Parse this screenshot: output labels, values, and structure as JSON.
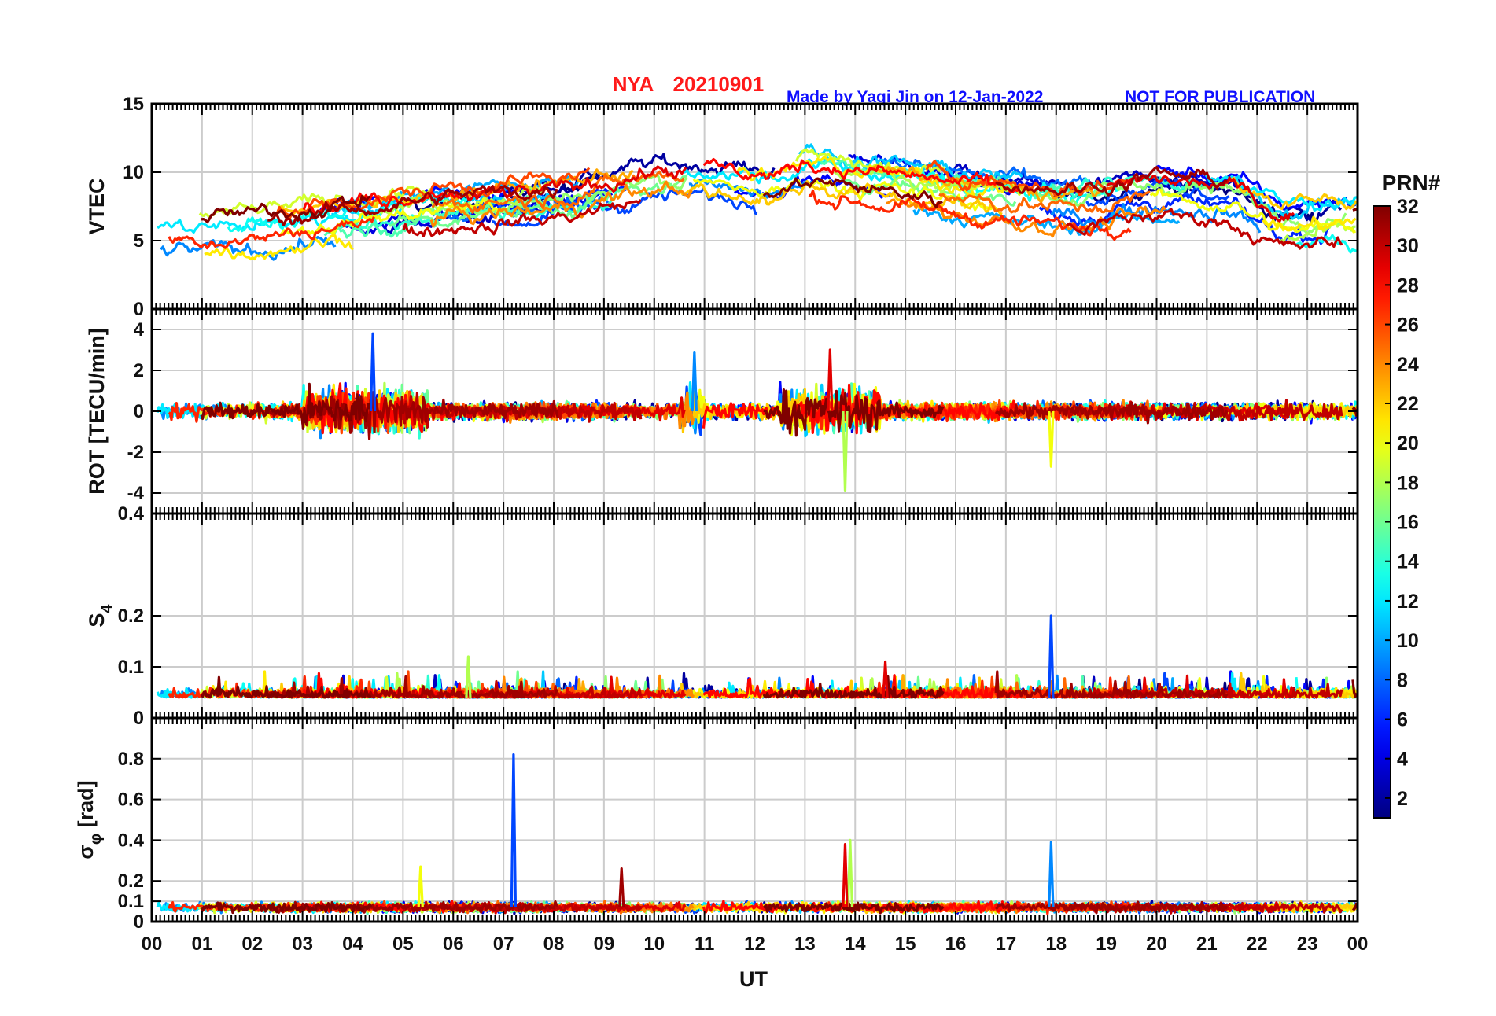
{
  "header": {
    "station": "NYA",
    "date": "20210901",
    "credit": "Made by Yaqi Jin on 12-Jan-2022",
    "notice": "NOT FOR PUBLICATION"
  },
  "colors": {
    "frame": "#000000",
    "grid": "#cccccc",
    "title_red": "#ff1a1a",
    "title_blue": "#1010ff"
  },
  "chart_data": {
    "type": "line",
    "x_axis": {
      "label": "UT",
      "range": [
        0,
        24
      ],
      "tick_labels": [
        "00",
        "01",
        "02",
        "03",
        "04",
        "05",
        "06",
        "07",
        "08",
        "09",
        "10",
        "11",
        "12",
        "13",
        "14",
        "15",
        "16",
        "17",
        "18",
        "19",
        "20",
        "21",
        "22",
        "23",
        "00"
      ]
    },
    "colorbar": {
      "label": "PRN#",
      "range": [
        1,
        32
      ],
      "tick_values": [
        2,
        4,
        6,
        8,
        10,
        12,
        14,
        16,
        18,
        20,
        22,
        24,
        26,
        28,
        30,
        32
      ],
      "tick_labels": [
        "2",
        "4",
        "6",
        "8",
        "10",
        "12",
        "14",
        "16",
        "18",
        "20",
        "22",
        "24",
        "26",
        "28",
        "30",
        "32"
      ],
      "colormap": "jet"
    },
    "panels": [
      {
        "id": "vtec",
        "ylabel": "VTEC",
        "ylim": [
          0,
          15
        ],
        "tick_values": [
          0,
          5,
          10,
          15
        ],
        "tick_labels": [
          "0",
          "5",
          "10",
          "15"
        ],
        "approx_trend": {
          "x": [
            0,
            2,
            4,
            6,
            8,
            10,
            11,
            12.5,
            13,
            15,
            17,
            18.5,
            20,
            21.5,
            22.5,
            24
          ],
          "y": [
            5.5,
            5.5,
            6.5,
            7.5,
            8.0,
            9.5,
            9.5,
            9.0,
            10.0,
            9.0,
            8.0,
            7.5,
            8.5,
            8.0,
            6.0,
            6.5
          ]
        },
        "approx_spread": 2.0,
        "series_note": "one trace per visible satellite PRN, colour-coded by PRN#"
      },
      {
        "id": "rot",
        "ylabel": "ROT [TECU/min]",
        "ylim": [
          -5,
          5
        ],
        "tick_values": [
          -4,
          -2,
          0,
          2,
          4
        ],
        "tick_labels": [
          "-4",
          "-2",
          "0",
          "2",
          "4"
        ],
        "notable_spikes": [
          {
            "ut": 4.4,
            "value": 3.8
          },
          {
            "ut": 13.8,
            "value": -3.9
          },
          {
            "ut": 13.5,
            "value": 3.0
          },
          {
            "ut": 10.8,
            "value": 2.9
          },
          {
            "ut": 17.9,
            "value": -2.7
          }
        ],
        "typical_amplitude": 0.5
      },
      {
        "id": "s4",
        "ylabel": "S",
        "ylabel_sub": "4",
        "ylim": [
          0,
          0.4
        ],
        "tick_values": [
          0,
          0.1,
          0.2,
          0.4
        ],
        "tick_labels": [
          "0",
          "0.1",
          "0.2",
          "0.4"
        ],
        "baseline": 0.04,
        "notable_spikes": [
          {
            "ut": 17.9,
            "value": 0.2
          },
          {
            "ut": 6.3,
            "value": 0.12
          },
          {
            "ut": 14.6,
            "value": 0.11
          }
        ]
      },
      {
        "id": "sigma_phi",
        "ylabel": "σ",
        "ylabel_sub": "φ",
        "ylabel_unit": " [rad]",
        "ylim": [
          0,
          1
        ],
        "tick_values": [
          0,
          0.1,
          0.2,
          0.4,
          0.6,
          0.8
        ],
        "tick_labels": [
          "0",
          "0.1",
          "0.2",
          "0.4",
          "0.6",
          "0.8"
        ],
        "baseline": 0.07,
        "notable_spikes": [
          {
            "ut": 7.2,
            "value": 0.82
          },
          {
            "ut": 13.9,
            "value": 0.4
          },
          {
            "ut": 13.8,
            "value": 0.38
          },
          {
            "ut": 17.9,
            "value": 0.39
          },
          {
            "ut": 5.35,
            "value": 0.27
          },
          {
            "ut": 9.35,
            "value": 0.26
          }
        ]
      }
    ]
  }
}
